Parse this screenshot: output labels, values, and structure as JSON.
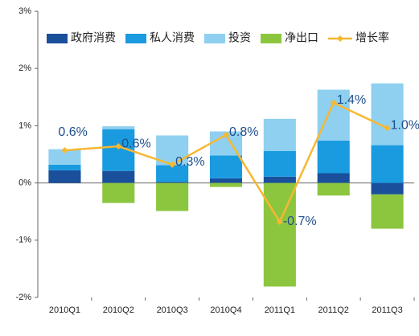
{
  "chart_data": {
    "type": "stacked_bar_line",
    "categories": [
      "2010Q1",
      "2010Q2",
      "2010Q3",
      "2010Q4",
      "2011Q1",
      "2011Q2",
      "2011Q3"
    ],
    "series": [
      {
        "name": "政府消费",
        "color": "#1a4f9c",
        "values": [
          0.22,
          0.21,
          0.02,
          0.08,
          0.11,
          0.17,
          -0.2
        ]
      },
      {
        "name": "私人消费",
        "color": "#1a9be0",
        "values": [
          0.1,
          0.73,
          0.29,
          0.4,
          0.45,
          0.57,
          0.66
        ]
      },
      {
        "name": "投资",
        "color": "#8fd0f0",
        "values": [
          0.27,
          0.05,
          0.52,
          0.42,
          0.56,
          0.89,
          1.08
        ]
      },
      {
        "name": "净出口",
        "color": "#8cc63f",
        "values": [
          0,
          -0.35,
          -0.49,
          -0.07,
          -1.81,
          -0.22,
          -0.6
        ]
      },
      {
        "name": "增长率",
        "color": "#f7b731",
        "kind": "line",
        "values": [
          0.57,
          0.64,
          0.32,
          0.84,
          -0.68,
          1.4,
          0.96
        ],
        "value_labels": [
          "0.6%",
          "0.6%",
          "0.3%",
          "0.8%",
          "-0.7%",
          "1.4%",
          "1.0%"
        ]
      }
    ],
    "ylim": [
      -2,
      3
    ],
    "yticks": [
      {
        "value": -2,
        "label": "-2%"
      },
      {
        "value": -1,
        "label": "-1%"
      },
      {
        "value": 0,
        "label": "0%"
      },
      {
        "value": 1,
        "label": "1%"
      },
      {
        "value": 2,
        "label": "2%"
      },
      {
        "value": 3,
        "label": "3%"
      }
    ],
    "grid": false
  }
}
